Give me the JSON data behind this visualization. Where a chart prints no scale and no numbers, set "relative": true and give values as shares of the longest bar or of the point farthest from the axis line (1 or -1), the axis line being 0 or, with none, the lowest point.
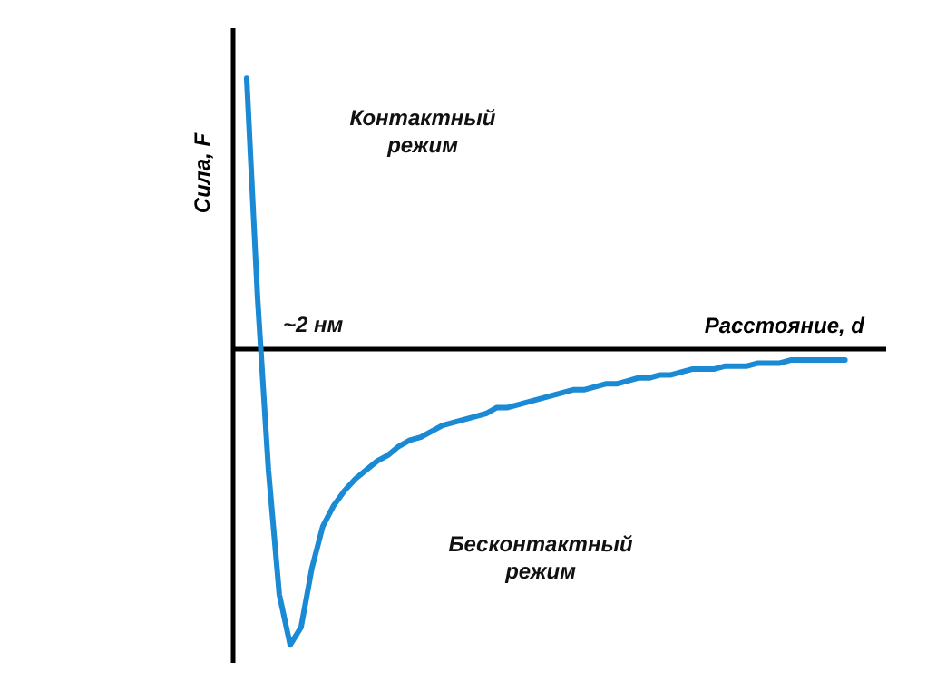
{
  "chart_data": {
    "type": "line",
    "relative": true,
    "xlabel": "Расстояние, d",
    "ylabel": "Сила, F",
    "categories": [
      null,
      null,
      null,
      null,
      null,
      null,
      null,
      null,
      null,
      null,
      null,
      null,
      null,
      null,
      null,
      null,
      null,
      null,
      null,
      null,
      null,
      null,
      null,
      null,
      null,
      null,
      null,
      null,
      null,
      null,
      null,
      null,
      null,
      null,
      null,
      null,
      null,
      null,
      null,
      null,
      null,
      null,
      null,
      null,
      null,
      null,
      null,
      null,
      null,
      null,
      null,
      null,
      null,
      null,
      null,
      null
    ],
    "series": [
      {
        "color": "#1a8ad4",
        "values": [
          0.91,
          0.17,
          -0.41,
          -0.83,
          -1,
          -0.94,
          -0.74,
          -0.6,
          -0.53,
          -0.48,
          -0.44,
          -0.41,
          -0.38,
          -0.36,
          -0.33,
          -0.31,
          -0.3,
          -0.28,
          -0.26,
          -0.25,
          -0.24,
          -0.23,
          -0.22,
          -0.2,
          -0.2,
          -0.19,
          -0.18,
          -0.17,
          -0.16,
          -0.15,
          -0.14,
          -0.14,
          -0.13,
          -0.12,
          -0.12,
          -0.11,
          -0.1,
          -0.1,
          -0.09,
          -0.09,
          -0.08,
          -0.07,
          -0.07,
          -0.07,
          -0.06,
          -0.06,
          -0.06,
          -0.05,
          -0.05,
          -0.05,
          -0.04,
          -0.04,
          -0.04,
          -0.04,
          -0.04,
          -0.04
        ]
      }
    ],
    "annotations": [
      "Контактный режим",
      "~2 нм",
      "Бесконтактный режим"
    ]
  }
}
